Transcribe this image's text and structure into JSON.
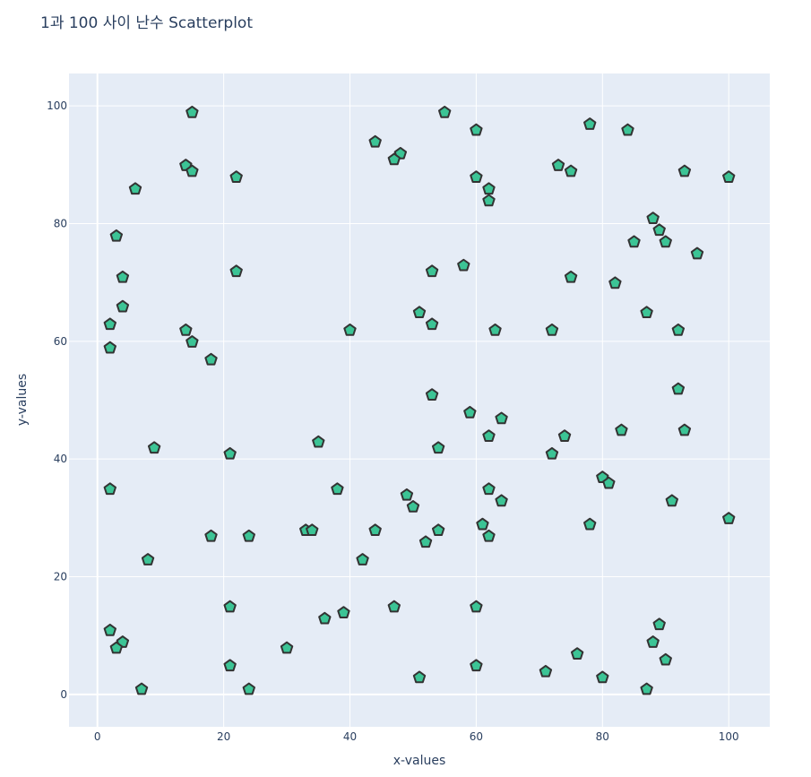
{
  "chart_data": {
    "type": "scatter",
    "title": "1과 100 사이 난수 Scatterplot",
    "xlabel": "x-values",
    "ylabel": "y-values",
    "xlim": [
      -4.5,
      106.5
    ],
    "ylim": [
      -5.5,
      105.5
    ],
    "xticks": [
      0,
      20,
      40,
      60,
      80,
      100
    ],
    "yticks": [
      0,
      20,
      40,
      60,
      80,
      100
    ],
    "grid": true,
    "marker": {
      "shape": "pentagon",
      "fill": "#3cc495",
      "stroke": "#333333"
    },
    "plot_bg": "#e5ecf6",
    "grid_color": "#ffffff",
    "text_color": "#2a3f5f",
    "points": [
      {
        "x": 15,
        "y": 99
      },
      {
        "x": 55,
        "y": 99
      },
      {
        "x": 78,
        "y": 97
      },
      {
        "x": 60,
        "y": 96
      },
      {
        "x": 84,
        "y": 96
      },
      {
        "x": 44,
        "y": 94
      },
      {
        "x": 48,
        "y": 92
      },
      {
        "x": 47,
        "y": 91
      },
      {
        "x": 14,
        "y": 90
      },
      {
        "x": 73,
        "y": 90
      },
      {
        "x": 15,
        "y": 89
      },
      {
        "x": 75,
        "y": 89
      },
      {
        "x": 93,
        "y": 89
      },
      {
        "x": 22,
        "y": 88
      },
      {
        "x": 60,
        "y": 88
      },
      {
        "x": 100,
        "y": 88
      },
      {
        "x": 6,
        "y": 86
      },
      {
        "x": 62,
        "y": 86
      },
      {
        "x": 62,
        "y": 84
      },
      {
        "x": 88,
        "y": 81
      },
      {
        "x": 89,
        "y": 79
      },
      {
        "x": 3,
        "y": 78
      },
      {
        "x": 85,
        "y": 77
      },
      {
        "x": 90,
        "y": 77
      },
      {
        "x": 95,
        "y": 75
      },
      {
        "x": 58,
        "y": 73
      },
      {
        "x": 22,
        "y": 72
      },
      {
        "x": 53,
        "y": 72
      },
      {
        "x": 4,
        "y": 71
      },
      {
        "x": 75,
        "y": 71
      },
      {
        "x": 82,
        "y": 70
      },
      {
        "x": 4,
        "y": 66
      },
      {
        "x": 51,
        "y": 65
      },
      {
        "x": 87,
        "y": 65
      },
      {
        "x": 2,
        "y": 63
      },
      {
        "x": 53,
        "y": 63
      },
      {
        "x": 14,
        "y": 62
      },
      {
        "x": 40,
        "y": 62
      },
      {
        "x": 63,
        "y": 62
      },
      {
        "x": 72,
        "y": 62
      },
      {
        "x": 92,
        "y": 62
      },
      {
        "x": 15,
        "y": 60
      },
      {
        "x": 2,
        "y": 59
      },
      {
        "x": 18,
        "y": 57
      },
      {
        "x": 92,
        "y": 52
      },
      {
        "x": 53,
        "y": 51
      },
      {
        "x": 59,
        "y": 48
      },
      {
        "x": 64,
        "y": 47
      },
      {
        "x": 83,
        "y": 45
      },
      {
        "x": 93,
        "y": 45
      },
      {
        "x": 62,
        "y": 44
      },
      {
        "x": 74,
        "y": 44
      },
      {
        "x": 35,
        "y": 43
      },
      {
        "x": 9,
        "y": 42
      },
      {
        "x": 54,
        "y": 42
      },
      {
        "x": 21,
        "y": 41
      },
      {
        "x": 72,
        "y": 41
      },
      {
        "x": 80,
        "y": 37
      },
      {
        "x": 81,
        "y": 36
      },
      {
        "x": 2,
        "y": 35
      },
      {
        "x": 38,
        "y": 35
      },
      {
        "x": 62,
        "y": 35
      },
      {
        "x": 49,
        "y": 34
      },
      {
        "x": 64,
        "y": 33
      },
      {
        "x": 91,
        "y": 33
      },
      {
        "x": 50,
        "y": 32
      },
      {
        "x": 100,
        "y": 30
      },
      {
        "x": 61,
        "y": 29
      },
      {
        "x": 78,
        "y": 29
      },
      {
        "x": 33,
        "y": 28
      },
      {
        "x": 34,
        "y": 28
      },
      {
        "x": 44,
        "y": 28
      },
      {
        "x": 54,
        "y": 28
      },
      {
        "x": 18,
        "y": 27
      },
      {
        "x": 24,
        "y": 27
      },
      {
        "x": 62,
        "y": 27
      },
      {
        "x": 52,
        "y": 26
      },
      {
        "x": 8,
        "y": 23
      },
      {
        "x": 42,
        "y": 23
      },
      {
        "x": 21,
        "y": 15
      },
      {
        "x": 47,
        "y": 15
      },
      {
        "x": 60,
        "y": 15
      },
      {
        "x": 39,
        "y": 14
      },
      {
        "x": 36,
        "y": 13
      },
      {
        "x": 89,
        "y": 12
      },
      {
        "x": 2,
        "y": 11
      },
      {
        "x": 4,
        "y": 9
      },
      {
        "x": 88,
        "y": 9
      },
      {
        "x": 3,
        "y": 8
      },
      {
        "x": 30,
        "y": 8
      },
      {
        "x": 76,
        "y": 7
      },
      {
        "x": 90,
        "y": 6
      },
      {
        "x": 21,
        "y": 5
      },
      {
        "x": 60,
        "y": 5
      },
      {
        "x": 71,
        "y": 4
      },
      {
        "x": 51,
        "y": 3
      },
      {
        "x": 80,
        "y": 3
      },
      {
        "x": 7,
        "y": 1
      },
      {
        "x": 24,
        "y": 1
      },
      {
        "x": 87,
        "y": 1
      }
    ]
  }
}
